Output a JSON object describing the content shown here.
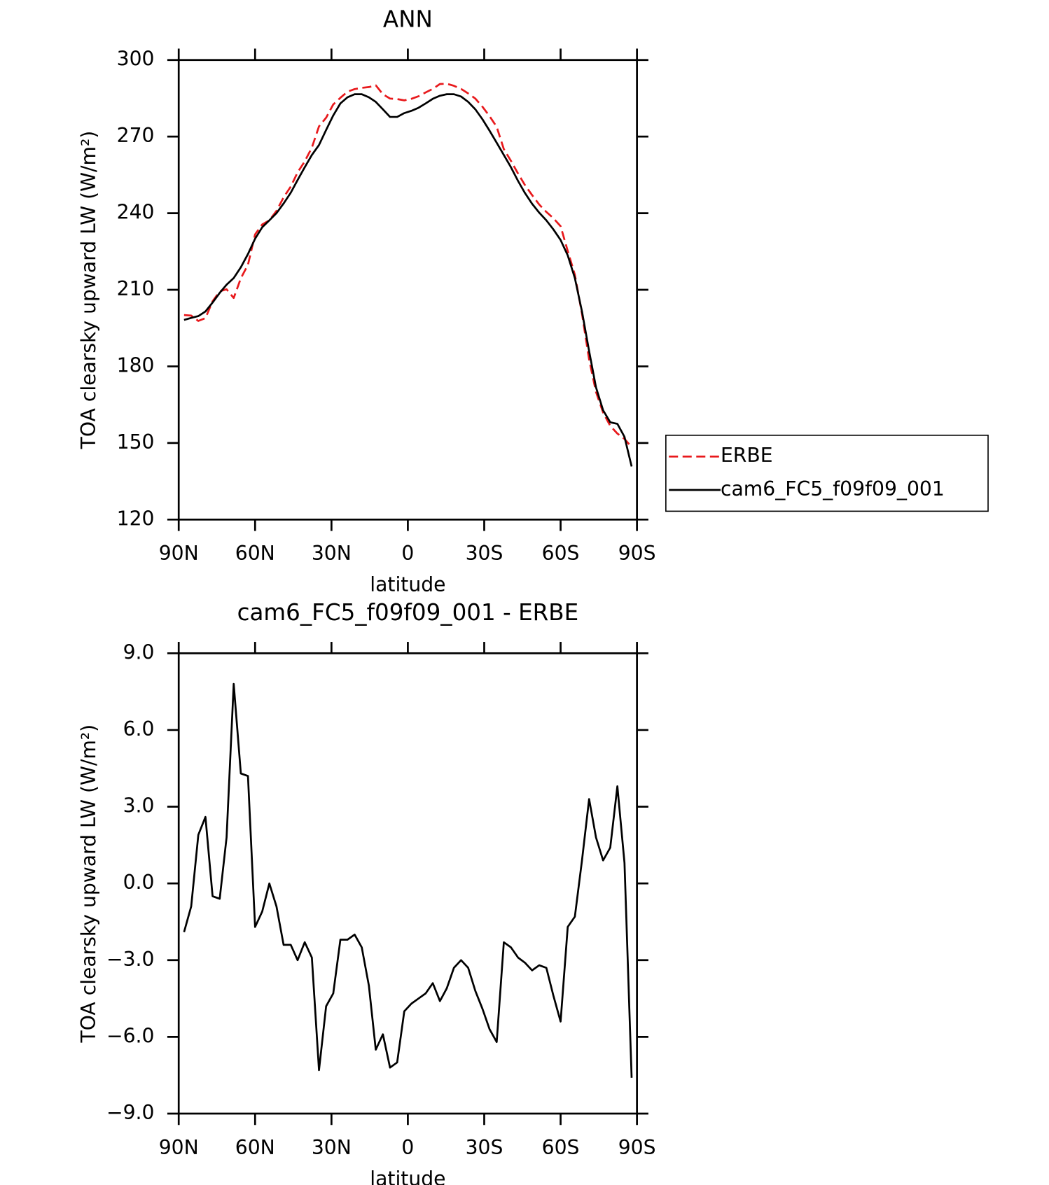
{
  "chart_data": [
    {
      "type": "line",
      "title": "ANN",
      "xlabel": "latitude",
      "ylabel": "TOA clearsky upward LW (W/m²)",
      "x": [
        87.9,
        85.1,
        82.3,
        79.5,
        76.7,
        73.9,
        71.2,
        68.4,
        65.6,
        62.8,
        60.0,
        57.2,
        54.4,
        51.6,
        48.8,
        46.0,
        43.3,
        40.5,
        37.7,
        34.9,
        32.1,
        29.3,
        26.5,
        23.7,
        20.9,
        18.1,
        15.3,
        12.6,
        9.8,
        7.0,
        4.2,
        1.4,
        -1.4,
        -4.2,
        -7.0,
        -9.8,
        -12.6,
        -15.3,
        -18.1,
        -20.9,
        -23.7,
        -26.5,
        -29.3,
        -32.1,
        -34.9,
        -37.7,
        -40.5,
        -43.3,
        -46.0,
        -48.8,
        -51.6,
        -54.4,
        -57.2,
        -60.0,
        -62.8,
        -65.6,
        -68.4,
        -71.2,
        -73.9,
        -76.7,
        -79.5,
        -82.3,
        -85.1,
        -87.9
      ],
      "xlim": [
        90,
        -90
      ],
      "xticks": [
        {
          "value": 90,
          "label": "90N"
        },
        {
          "value": 60,
          "label": "60N"
        },
        {
          "value": 30,
          "label": "30N"
        },
        0,
        {
          "value": -30,
          "label": "30S"
        },
        {
          "value": -60,
          "label": "60S"
        },
        {
          "value": -90,
          "label": "90S"
        }
      ],
      "ylim": [
        120,
        300
      ],
      "yticks": [
        120,
        150,
        180,
        210,
        240,
        270,
        300
      ],
      "legend_position": "right",
      "series": [
        {
          "name": "ERBE",
          "color": "#e8191c",
          "line_style": "dashed",
          "values": [
            200.1,
            199.9,
            197.8,
            198.9,
            205.5,
            209.4,
            210.2,
            206.8,
            214.5,
            219.8,
            231.7,
            235.6,
            237.2,
            240.9,
            246.2,
            250.4,
            256.0,
            260.3,
            265.7,
            274.0,
            277.4,
            282.6,
            285.2,
            287.6,
            288.6,
            289.1,
            289.4,
            290.1,
            286.6,
            284.9,
            284.7,
            284.2,
            284.8,
            285.8,
            287.3,
            288.7,
            290.6,
            290.7,
            289.9,
            288.7,
            286.9,
            284.9,
            281.7,
            278.0,
            273.8,
            265.1,
            260.5,
            255.5,
            251.0,
            247.1,
            243.4,
            240.5,
            238.0,
            234.9,
            225.2,
            215.9,
            200.6,
            182.7,
            170.0,
            161.9,
            156.7,
            153.7,
            151.6,
            148.4
          ]
        },
        {
          "name": "cam6_FC5_f09f09_001",
          "color": "#000000",
          "line_style": "solid",
          "values": [
            198.2,
            199.0,
            199.7,
            201.5,
            205.0,
            208.8,
            212.0,
            214.6,
            218.8,
            224.0,
            230.0,
            234.5,
            237.2,
            240.0,
            243.8,
            248.0,
            253.0,
            258.0,
            262.8,
            266.7,
            272.6,
            278.3,
            283.0,
            285.4,
            286.6,
            286.6,
            285.4,
            283.6,
            280.7,
            277.7,
            277.7,
            279.2,
            280.1,
            281.3,
            283.0,
            284.8,
            286.0,
            286.6,
            286.6,
            285.7,
            283.6,
            280.7,
            276.8,
            272.3,
            267.6,
            262.8,
            258.0,
            252.6,
            247.9,
            243.7,
            240.2,
            237.2,
            233.6,
            229.5,
            223.5,
            214.6,
            201.5,
            186.0,
            171.8,
            162.8,
            158.1,
            157.5,
            152.4,
            140.8
          ]
        }
      ]
    },
    {
      "type": "line",
      "title": "cam6_FC5_f09f09_001 - ERBE",
      "xlabel": "latitude",
      "ylabel": "TOA clearsky upward LW (W/m²)",
      "x": [
        87.9,
        85.1,
        82.3,
        79.5,
        76.7,
        73.9,
        71.2,
        68.4,
        65.6,
        62.8,
        60.0,
        57.2,
        54.4,
        51.6,
        48.8,
        46.0,
        43.3,
        40.5,
        37.7,
        34.9,
        32.1,
        29.3,
        26.5,
        23.7,
        20.9,
        18.1,
        15.3,
        12.6,
        9.8,
        7.0,
        4.2,
        1.4,
        -1.4,
        -4.2,
        -7.0,
        -9.8,
        -12.6,
        -15.3,
        -18.1,
        -20.9,
        -23.7,
        -26.5,
        -29.3,
        -32.1,
        -34.9,
        -37.7,
        -40.5,
        -43.3,
        -46.0,
        -48.8,
        -51.6,
        -54.4,
        -57.2,
        -60.0,
        -62.8,
        -65.6,
        -68.4,
        -71.2,
        -73.9,
        -76.7,
        -79.5,
        -82.3,
        -85.1,
        -87.9
      ],
      "xlim": [
        90,
        -90
      ],
      "xticks": [
        {
          "value": 90,
          "label": "90N"
        },
        {
          "value": 60,
          "label": "60N"
        },
        {
          "value": 30,
          "label": "30N"
        },
        0,
        {
          "value": -30,
          "label": "30S"
        },
        {
          "value": -60,
          "label": "60S"
        },
        {
          "value": -90,
          "label": "90S"
        }
      ],
      "ylim": [
        -9,
        9
      ],
      "yticks": [
        {
          "value": -9,
          "label": "−9.0"
        },
        {
          "value": -6,
          "label": "−6.0"
        },
        {
          "value": -3,
          "label": "−3.0"
        },
        {
          "value": 0,
          "label": "0.0"
        },
        {
          "value": 3,
          "label": "3.0"
        },
        {
          "value": 6,
          "label": "6.0"
        },
        {
          "value": 9,
          "label": "9.0"
        }
      ],
      "series": [
        {
          "color": "#000000",
          "line_style": "solid",
          "values": [
            -1.9,
            -0.9,
            1.9,
            2.6,
            -0.5,
            -0.6,
            1.8,
            7.8,
            4.3,
            4.2,
            -1.7,
            -1.1,
            0.0,
            -0.9,
            -2.4,
            -2.4,
            -3.0,
            -2.3,
            -2.9,
            -7.3,
            -4.8,
            -4.3,
            -2.2,
            -2.2,
            -2.0,
            -2.5,
            -4.0,
            -6.5,
            -5.9,
            -7.2,
            -7.0,
            -5.0,
            -4.7,
            -4.5,
            -4.3,
            -3.9,
            -4.6,
            -4.1,
            -3.3,
            -3.0,
            -3.3,
            -4.2,
            -4.9,
            -5.7,
            -6.2,
            -2.3,
            -2.5,
            -2.9,
            -3.1,
            -3.4,
            -3.2,
            -3.3,
            -4.4,
            -5.4,
            -1.7,
            -1.3,
            0.9,
            3.3,
            1.8,
            0.9,
            1.4,
            3.8,
            0.8,
            -7.6
          ]
        }
      ]
    }
  ]
}
